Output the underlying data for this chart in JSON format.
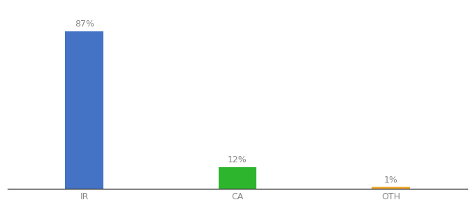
{
  "categories": [
    "IR",
    "CA",
    "OTH"
  ],
  "values": [
    87,
    12,
    1
  ],
  "bar_colors": [
    "#4472c4",
    "#2db52d",
    "#f0a830"
  ],
  "labels": [
    "87%",
    "12%",
    "1%"
  ],
  "background_color": "#ffffff",
  "label_fontsize": 9,
  "tick_fontsize": 9,
  "tick_color": "#888888",
  "label_color": "#888888",
  "ylim": [
    0,
    100
  ],
  "bar_width": 0.25
}
